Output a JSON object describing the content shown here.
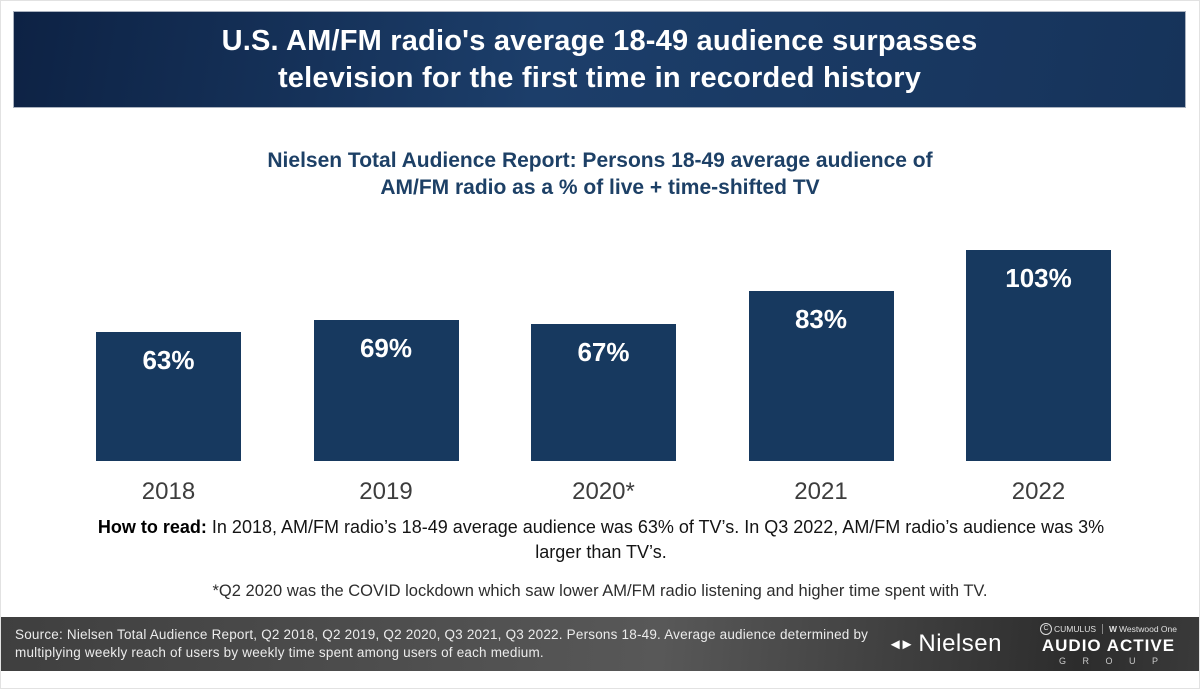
{
  "header": {
    "title_line1": "U.S. AM/FM radio's average 18-49 audience surpasses",
    "title_line2": "television for the first time in recorded history"
  },
  "subtitle": {
    "line1": "Nielsen Total Audience Report: Persons 18-49 average audience of",
    "line2": "AM/FM radio as a % of live + time-shifted TV"
  },
  "chart_data": {
    "type": "bar",
    "title": "Nielsen Total Audience Report: Persons 18-49 average audience of AM/FM radio as a % of live + time-shifted TV",
    "categories": [
      "2018",
      "2019",
      "2020*",
      "2021",
      "2022"
    ],
    "values": [
      63,
      69,
      67,
      83,
      103
    ],
    "value_labels": [
      "63%",
      "69%",
      "67%",
      "83%",
      "103%"
    ],
    "xlabel": "",
    "ylabel": "",
    "ylim": [
      0,
      110
    ],
    "grid": false,
    "legend": "none",
    "bar_color": "#17395f",
    "value_label_color": "#ffffff"
  },
  "how_to_read": {
    "label": "How to read:",
    "text": " In 2018, AM/FM radio’s 18-49 average audience was 63% of TV’s. In Q3 2022, AM/FM radio’s audience was 3% larger than TV’s."
  },
  "footnote": "*Q2 2020 was the COVID lockdown which saw lower AM/FM radio listening and higher time spent with TV.",
  "footer": {
    "source_text": "Source: Nielsen Total Audience Report, Q2 2018, Q2 2019, Q2 2020, Q3 2021, Q3 2022. Persons 18-49. Average audience determined by multiplying weekly reach of users by weekly time spent among users of each medium.",
    "nielsen_label": "Nielsen",
    "cumulus_label": "CUMULUS",
    "westwood_label": "Westwood One",
    "audio_active_label": "AUDIO ACTIVE",
    "group_label": "G R O U P"
  },
  "icons": {
    "nielsen_mark_left": "◄",
    "nielsen_mark_right": "►",
    "cumulus_c": "C",
    "westwood_w": "W"
  },
  "colors": {
    "banner_navy_dark": "#0d2244",
    "banner_navy_light": "#1c3e6a",
    "subtitle_navy": "#1d4066",
    "bar_navy": "#17395f",
    "year_label_gray": "#3d3d3d",
    "footer_gray": "#4a4a4a"
  }
}
